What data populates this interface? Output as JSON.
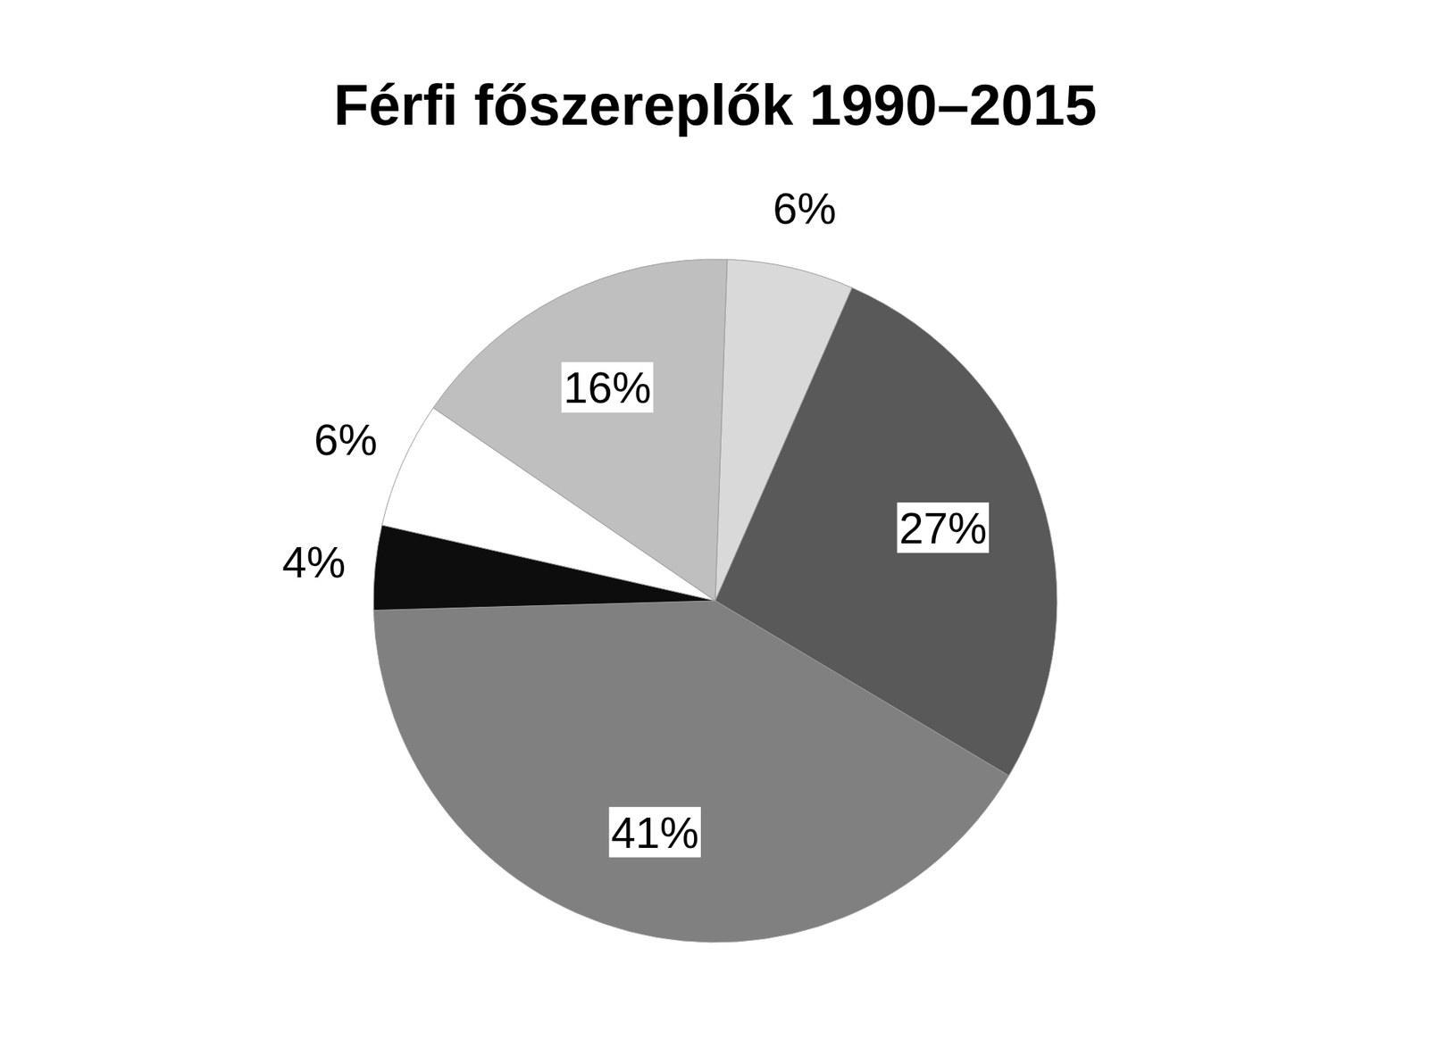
{
  "chart_data": {
    "type": "pie",
    "title": "Férfi főszereplők 1990–2015",
    "values": [
      6,
      27,
      41,
      4,
      6,
      16
    ],
    "value_labels": [
      "6%",
      "27%",
      "41%",
      "4%",
      "6%",
      "16%"
    ],
    "colors": [
      "#d9d9d9",
      "#595959",
      "#808080",
      "#0d0d0d",
      "#ffffff",
      "#bfbfbf"
    ],
    "data_labels": true
  }
}
